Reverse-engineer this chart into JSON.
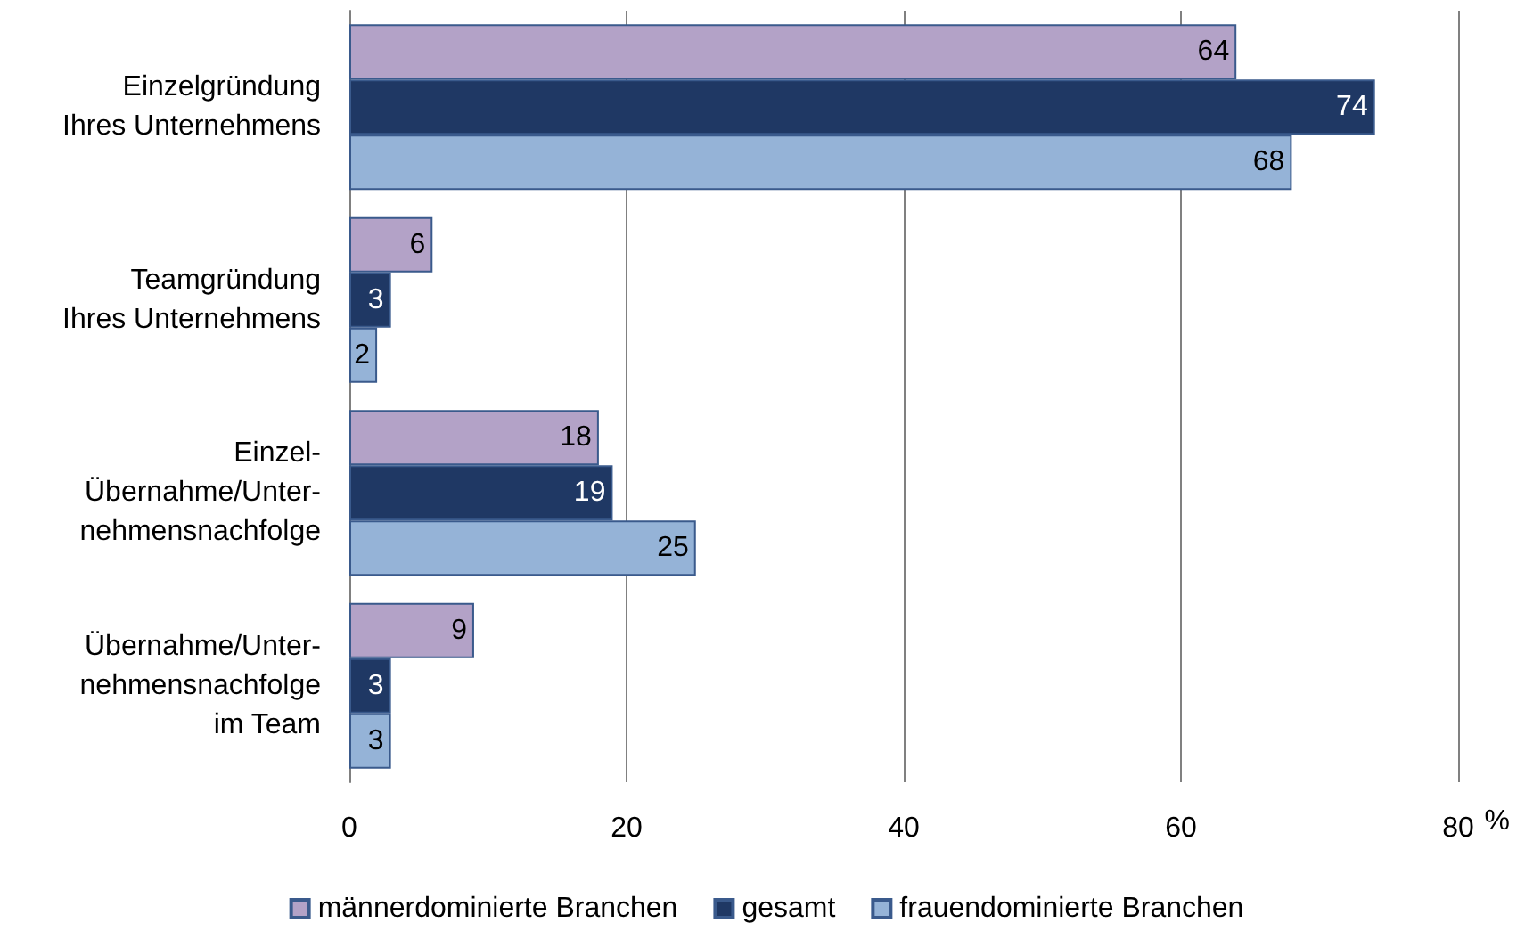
{
  "chart_data": {
    "type": "bar",
    "orientation": "horizontal",
    "xlabel": "%",
    "categories": [
      "Einzelgründung\nIhres Unternehmens",
      "Teamgründung\nIhres Unternehmens",
      "Einzel-\nÜbernahme/Unter-\nnehmensnachfolge",
      "Übernahme/Unter-\nnehmensnachfolge\nim Team"
    ],
    "series": [
      {
        "name": "männerdominierte Branchen",
        "color": "#b3a2c7",
        "values": [
          64,
          6,
          18,
          9
        ]
      },
      {
        "name": "gesamt",
        "color": "#1f3864",
        "values": [
          74,
          3,
          19,
          3
        ]
      },
      {
        "name": "frauendominierte Branchen",
        "color": "#95b3d7",
        "values": [
          68,
          2,
          25,
          3
        ]
      }
    ],
    "xlim": [
      0,
      80
    ],
    "xticks": [
      0,
      20,
      40,
      60,
      80
    ],
    "grid": "x",
    "legend": "bottom",
    "data_labels": true
  }
}
